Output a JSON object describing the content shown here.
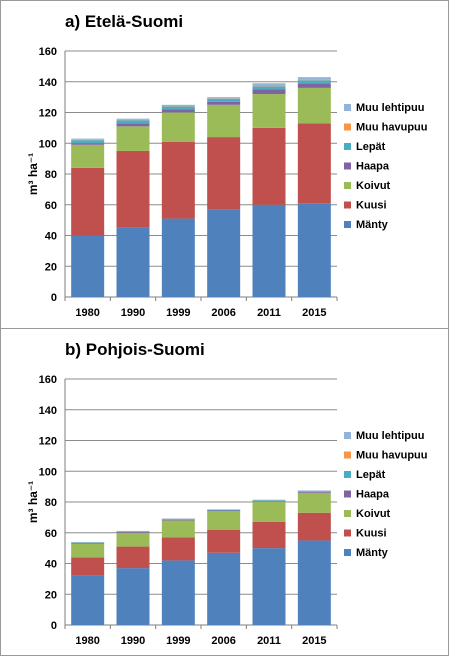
{
  "chart_data": [
    {
      "type": "bar",
      "stacked": true,
      "title": "a) Etelä-Suomi",
      "ylabel": "m³ ha⁻¹",
      "ylim": [
        0,
        160
      ],
      "yticks": [
        0,
        20,
        40,
        60,
        80,
        100,
        120,
        140,
        160
      ],
      "grid": true,
      "legend_position": "right",
      "categories": [
        "1980",
        "1990",
        "1999",
        "2006",
        "2011",
        "2015"
      ],
      "series": [
        {
          "name": "Mänty",
          "color": "#4f81bd",
          "values": [
            40,
            45,
            51,
            57,
            60,
            61
          ]
        },
        {
          "name": "Kuusi",
          "color": "#c0504d",
          "values": [
            44,
            50,
            50,
            47,
            50,
            52
          ]
        },
        {
          "name": "Koivut",
          "color": "#9bbb59",
          "values": [
            15,
            16,
            19,
            21,
            22,
            23
          ]
        },
        {
          "name": "Haapa",
          "color": "#8064a2",
          "values": [
            1,
            2,
            2,
            2,
            3,
            3
          ]
        },
        {
          "name": "Lepät",
          "color": "#4bacc6",
          "values": [
            2,
            2,
            2,
            2,
            2,
            2
          ]
        },
        {
          "name": "Muu havupuu",
          "color": "#f79646",
          "values": [
            0.2,
            0.2,
            0.2,
            0.2,
            0.2,
            0.2
          ]
        },
        {
          "name": "Muu lehtipuu",
          "color": "#95b3d7",
          "values": [
            0.8,
            0.8,
            0.8,
            0.8,
            1.8,
            1.8
          ]
        }
      ]
    },
    {
      "type": "bar",
      "stacked": true,
      "title": "b) Pohjois-Suomi",
      "ylabel": "m³ ha⁻¹",
      "ylim": [
        0,
        160
      ],
      "yticks": [
        0,
        20,
        40,
        60,
        80,
        100,
        120,
        140,
        160
      ],
      "grid": true,
      "legend_position": "right",
      "categories": [
        "1980",
        "1990",
        "1999",
        "2006",
        "2011",
        "2015"
      ],
      "series": [
        {
          "name": "Mänty",
          "color": "#4f81bd",
          "values": [
            32,
            37,
            42,
            47,
            50,
            55
          ]
        },
        {
          "name": "Kuusi",
          "color": "#c0504d",
          "values": [
            12,
            14,
            15,
            15,
            17,
            18
          ]
        },
        {
          "name": "Koivut",
          "color": "#9bbb59",
          "values": [
            9,
            9,
            11,
            12,
            13,
            13
          ]
        },
        {
          "name": "Haapa",
          "color": "#8064a2",
          "values": [
            0.4,
            0.5,
            0.5,
            0.5,
            0.5,
            0.5
          ]
        },
        {
          "name": "Lepät",
          "color": "#4bacc6",
          "values": [
            0.3,
            0.3,
            0.4,
            0.4,
            0.5,
            0.5
          ]
        },
        {
          "name": "Muu havupuu",
          "color": "#f79646",
          "values": [
            0.1,
            0.1,
            0.1,
            0.1,
            0.1,
            0.1
          ]
        },
        {
          "name": "Muu lehtipuu",
          "color": "#95b3d7",
          "values": [
            0.2,
            0.3,
            0.3,
            0.3,
            0.4,
            0.4
          ]
        }
      ]
    }
  ]
}
